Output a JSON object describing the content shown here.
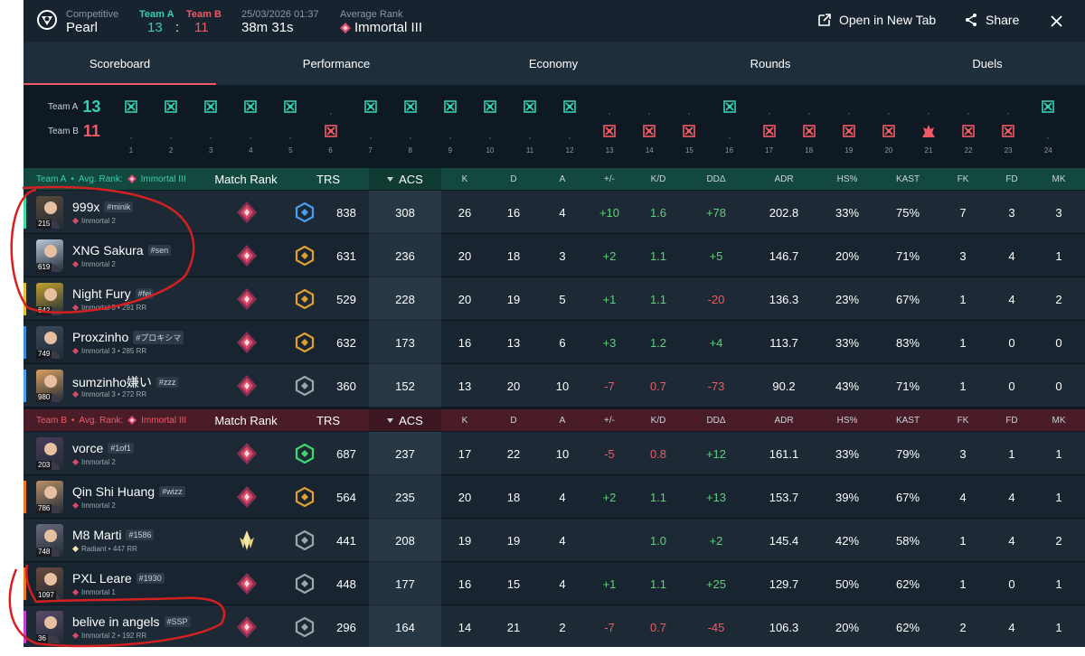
{
  "header": {
    "mode_label": "Competitive",
    "map": "Pearl",
    "team_a_label": "Team A",
    "team_b_label": "Team B",
    "score_a": "13",
    "score_sep": ":",
    "score_b": "11",
    "datetime": "25/03/2026 01:37",
    "duration": "38m 31s",
    "avg_rank_label": "Average Rank",
    "avg_rank": "Immortal III",
    "open_new_tab": "Open in New Tab",
    "share": "Share"
  },
  "tabs": [
    "Scoreboard",
    "Performance",
    "Economy",
    "Rounds",
    "Duels"
  ],
  "timeline": {
    "team_a_label": "Team A",
    "team_a_score": "13",
    "team_b_label": "Team B",
    "team_b_score": "11",
    "rounds": [
      {
        "n": "1",
        "w": "A",
        "icon": "defuse"
      },
      {
        "n": "2",
        "w": "A",
        "icon": "defuse"
      },
      {
        "n": "3",
        "w": "A",
        "icon": "defuse"
      },
      {
        "n": "4",
        "w": "A",
        "icon": "defuse"
      },
      {
        "n": "5",
        "w": "A",
        "icon": "defuse"
      },
      {
        "n": "6",
        "w": "B",
        "icon": "elim"
      },
      {
        "n": "7",
        "w": "A",
        "icon": "defuse"
      },
      {
        "n": "8",
        "w": "A",
        "icon": "defuse"
      },
      {
        "n": "9",
        "w": "A",
        "icon": "defuse"
      },
      {
        "n": "10",
        "w": "A",
        "icon": "defuse"
      },
      {
        "n": "11",
        "w": "A",
        "icon": "defuse"
      },
      {
        "n": "12",
        "w": "A",
        "icon": "defuse"
      },
      {
        "n": "13",
        "w": "B",
        "icon": "elim"
      },
      {
        "n": "14",
        "w": "B",
        "icon": "elim"
      },
      {
        "n": "15",
        "w": "B",
        "icon": "elim"
      },
      {
        "n": "16",
        "w": "A",
        "icon": "defuse"
      },
      {
        "n": "17",
        "w": "B",
        "icon": "elim"
      },
      {
        "n": "18",
        "w": "B",
        "icon": "elim"
      },
      {
        "n": "19",
        "w": "B",
        "icon": "elim"
      },
      {
        "n": "20",
        "w": "B",
        "icon": "elim"
      },
      {
        "n": "21",
        "w": "B",
        "icon": "spike"
      },
      {
        "n": "22",
        "w": "B",
        "icon": "elim"
      },
      {
        "n": "23",
        "w": "B",
        "icon": "elim"
      },
      {
        "n": "24",
        "w": "A",
        "icon": "defuse"
      }
    ]
  },
  "columns": {
    "match_rank": "Match Rank",
    "trs": "TRS",
    "acs": "ACS",
    "k": "K",
    "d": "D",
    "a": "A",
    "pm": "+/-",
    "kd": "K/D",
    "dd": "DDΔ",
    "adr": "ADR",
    "hs": "HS%",
    "kast": "KAST",
    "fk": "FK",
    "fd": "FD",
    "mk": "MK"
  },
  "teams": [
    {
      "name": "Team A",
      "dot": "•",
      "avg_label": "Avg. Rank:",
      "avg_rank": "Immortal III",
      "color": "#35d0b0",
      "players": [
        {
          "name": "999x",
          "tag": "#minik",
          "level": "215",
          "sub": "Immortal 2",
          "stripe": "#3ed8a0",
          "trs_tier": "blue",
          "trs": "838",
          "acs": "308",
          "k": "26",
          "d": "16",
          "a": "4",
          "pm": "+10",
          "kd": "1.6",
          "dd": "+78",
          "adr": "202.8",
          "hs": "33%",
          "kast": "75%",
          "fk": "7",
          "fd": "3",
          "mk": "3"
        },
        {
          "name": "XNG Sakura",
          "tag": "#sen",
          "level": "619",
          "sub": "Immortal 2",
          "stripe": "#1d2a35",
          "trs_tier": "gold",
          "trs": "631",
          "acs": "236",
          "k": "20",
          "d": "18",
          "a": "3",
          "pm": "+2",
          "kd": "1.1",
          "dd": "+5",
          "adr": "146.7",
          "hs": "20%",
          "kast": "71%",
          "fk": "3",
          "fd": "4",
          "mk": "1"
        },
        {
          "name": "Night Fury",
          "tag": "#fei",
          "level": "642",
          "sub": "Immortal 3 • 291 RR",
          "stripe": "#e0c030",
          "trs_tier": "gold",
          "trs": "529",
          "acs": "228",
          "k": "20",
          "d": "19",
          "a": "5",
          "pm": "+1",
          "kd": "1.1",
          "dd": "-20",
          "adr": "136.3",
          "hs": "23%",
          "kast": "67%",
          "fk": "1",
          "fd": "4",
          "mk": "2"
        },
        {
          "name": "Proxzinho",
          "tag": "#プロキシマ",
          "level": "749",
          "sub": "Immortal 3 • 285 RR",
          "stripe": "#3a8ad8",
          "trs_tier": "gold",
          "trs": "632",
          "acs": "173",
          "k": "16",
          "d": "13",
          "a": "6",
          "pm": "+3",
          "kd": "1.2",
          "dd": "+4",
          "adr": "113.7",
          "hs": "33%",
          "kast": "83%",
          "fk": "1",
          "fd": "0",
          "mk": "0"
        },
        {
          "name": "sumzinho嫌い",
          "tag": "#zzz",
          "level": "980",
          "sub": "Immortal 3 • 272 RR",
          "stripe": "#4aa0e8",
          "trs_tier": "silver",
          "trs": "360",
          "acs": "152",
          "k": "13",
          "d": "20",
          "a": "10",
          "pm": "-7",
          "kd": "0.7",
          "dd": "-73",
          "adr": "90.2",
          "hs": "43%",
          "kast": "71%",
          "fk": "1",
          "fd": "0",
          "mk": "0"
        }
      ]
    },
    {
      "name": "Team B",
      "dot": "•",
      "avg_label": "Avg. Rank:",
      "avg_rank": "Immortal III",
      "color": "#ef5a65",
      "players": [
        {
          "name": "vorce",
          "tag": "#1of1",
          "level": "203",
          "sub": "Immortal 2",
          "stripe": "#1d2a35",
          "trs_tier": "green",
          "trs": "687",
          "acs": "237",
          "k": "17",
          "d": "22",
          "a": "10",
          "pm": "-5",
          "kd": "0.8",
          "dd": "+12",
          "adr": "161.1",
          "hs": "33%",
          "kast": "79%",
          "fk": "3",
          "fd": "1",
          "mk": "1"
        },
        {
          "name": "Qin Shi Huang",
          "tag": "#wizz",
          "level": "786",
          "sub": "Immortal 2",
          "stripe": "#e87a20",
          "trs_tier": "gold",
          "trs": "564",
          "acs": "235",
          "k": "20",
          "d": "18",
          "a": "4",
          "pm": "+2",
          "kd": "1.1",
          "dd": "+13",
          "adr": "153.7",
          "hs": "39%",
          "kast": "67%",
          "fk": "4",
          "fd": "4",
          "mk": "1"
        },
        {
          "name": "M8 Marti",
          "tag": "#1586",
          "level": "748",
          "sub": "Radiant • 447 RR",
          "stripe": "#1d2a35",
          "trs_tier": "silver",
          "trs": "441",
          "acs": "208",
          "k": "19",
          "d": "19",
          "a": "4",
          "pm": "",
          "kd": "1.0",
          "dd": "+2",
          "adr": "145.4",
          "hs": "42%",
          "kast": "58%",
          "fk": "1",
          "fd": "4",
          "mk": "2",
          "radiant": true
        },
        {
          "name": "PXL Leare",
          "tag": "#1930",
          "level": "1097",
          "sub": "Immortal 1",
          "stripe": "#e87a20",
          "trs_tier": "silver",
          "trs": "448",
          "acs": "177",
          "k": "16",
          "d": "15",
          "a": "4",
          "pm": "+1",
          "kd": "1.1",
          "dd": "+25",
          "adr": "129.7",
          "hs": "50%",
          "kast": "62%",
          "fk": "1",
          "fd": "0",
          "mk": "1"
        },
        {
          "name": "belive in angels",
          "tag": "#SSP",
          "level": "36",
          "sub": "Immortal 2 • 192 RR",
          "stripe": "#c040d0",
          "trs_tier": "silver",
          "trs": "296",
          "acs": "164",
          "k": "14",
          "d": "21",
          "a": "2",
          "pm": "-7",
          "kd": "0.7",
          "dd": "-45",
          "adr": "106.3",
          "hs": "20%",
          "kast": "62%",
          "fk": "2",
          "fd": "4",
          "mk": "1"
        }
      ]
    }
  ],
  "icons": {
    "logo": "tracker-logo-icon",
    "open": "external-link-icon",
    "share": "share-icon",
    "close": "close-icon",
    "sort": "sort-desc-icon",
    "rank": "immortal-rank-icon"
  },
  "colors": {
    "bg": "#0f1923",
    "team_a": "#35d0b0",
    "team_b": "#ef5a65",
    "positive": "#5fd07a",
    "negative": "#ef5a65",
    "annotation": "#d42020"
  }
}
